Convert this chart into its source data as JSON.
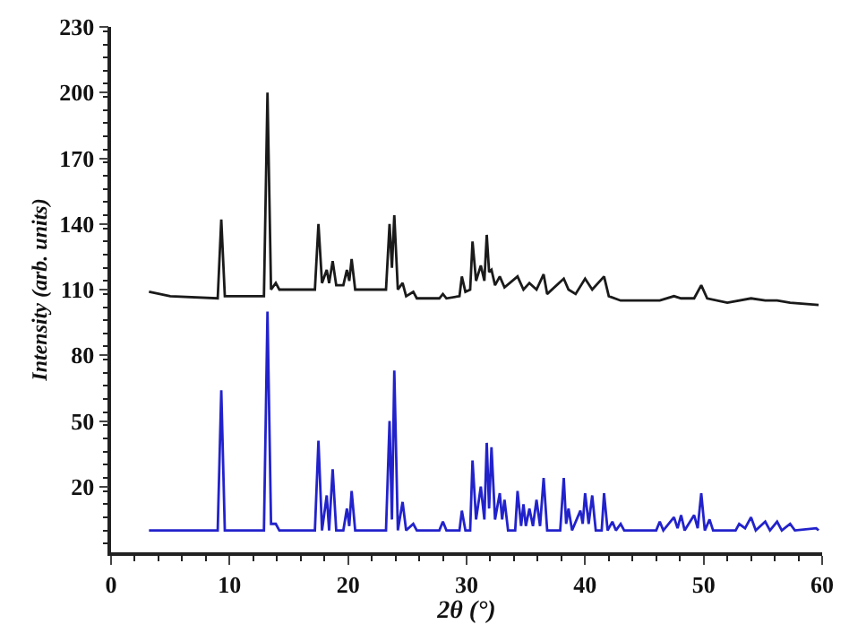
{
  "chart_data": {
    "type": "line",
    "xlabel": "2θ (°)",
    "ylabel": "Intensity (arb. units)",
    "xlim": [
      0,
      60
    ],
    "xticks": [
      0,
      10,
      20,
      30,
      40,
      50,
      60
    ],
    "ylim": [
      -10,
      230
    ],
    "yticks": [
      20,
      50,
      80,
      110,
      140,
      170,
      200,
      230
    ],
    "marker": "none",
    "line_style": "solid",
    "series": [
      {
        "color": "#1a1a1a",
        "x": [
          3.2,
          5,
          9.0,
          9.3,
          9.6,
          12.9,
          13.2,
          13.5,
          13.9,
          14.2,
          17.2,
          17.5,
          17.8,
          18.2,
          18.4,
          18.7,
          19.0,
          19.6,
          19.9,
          20.1,
          20.3,
          20.6,
          23.2,
          23.5,
          23.7,
          23.9,
          24.2,
          24.6,
          24.9,
          25.5,
          25.8,
          27.7,
          28.0,
          28.3,
          29.4,
          29.6,
          29.9,
          30.3,
          30.5,
          30.8,
          31.2,
          31.5,
          31.7,
          31.9,
          32.1,
          32.4,
          32.8,
          33.2,
          34.3,
          34.8,
          35.3,
          35.9,
          36.5,
          36.8,
          38.2,
          38.6,
          39.2,
          40.0,
          40.6,
          41.6,
          42.0,
          43.0,
          46.3,
          47.5,
          48.1,
          49.2,
          49.8,
          50.3,
          52.0,
          54.0,
          55.2,
          56.2,
          57.3,
          59.7
        ],
        "values": [
          109,
          107,
          106,
          142,
          107,
          107,
          200,
          110,
          113,
          110,
          110,
          140,
          113,
          119,
          113,
          123,
          112,
          112,
          119,
          114,
          124,
          110,
          110,
          140,
          120,
          144,
          110,
          113,
          107,
          109,
          106,
          106,
          108,
          106,
          107,
          116,
          109,
          110,
          132,
          114,
          121,
          114,
          135,
          118,
          119,
          112,
          116,
          111,
          116,
          110,
          113,
          110,
          117,
          108,
          115,
          110,
          108,
          115,
          110,
          116,
          107,
          105,
          105,
          107,
          106,
          106,
          112,
          106,
          104,
          106,
          105,
          105,
          104,
          103
        ]
      },
      {
        "color": "#2222cc",
        "x": [
          3.2,
          9.0,
          9.3,
          9.6,
          12.9,
          13.2,
          13.5,
          13.9,
          14.2,
          17.2,
          17.5,
          17.8,
          18.2,
          18.4,
          18.7,
          19.0,
          19.6,
          19.9,
          20.1,
          20.3,
          20.6,
          23.2,
          23.5,
          23.7,
          23.9,
          24.2,
          24.6,
          24.9,
          25.5,
          25.8,
          27.7,
          28.0,
          28.3,
          29.4,
          29.6,
          29.9,
          30.3,
          30.5,
          30.8,
          31.2,
          31.5,
          31.7,
          31.9,
          32.1,
          32.4,
          32.8,
          33.0,
          33.2,
          33.5,
          34.1,
          34.3,
          34.6,
          34.8,
          35.0,
          35.3,
          35.6,
          35.9,
          36.2,
          36.5,
          36.8,
          37.9,
          38.2,
          38.4,
          38.6,
          38.9,
          39.6,
          39.8,
          40.0,
          40.3,
          40.6,
          40.9,
          41.4,
          41.6,
          41.9,
          42.3,
          42.6,
          43.0,
          43.3,
          46.0,
          46.3,
          46.6,
          47.5,
          47.8,
          48.1,
          48.4,
          49.2,
          49.5,
          49.8,
          50.1,
          50.5,
          50.8,
          52.7,
          53.0,
          53.5,
          54.0,
          54.4,
          55.2,
          55.6,
          56.2,
          56.6,
          57.3,
          57.7,
          59.5,
          59.7
        ],
        "values": [
          0,
          0,
          64,
          0,
          0,
          100,
          3,
          3,
          0,
          0,
          41,
          0,
          16,
          0,
          28,
          0,
          0,
          10,
          2,
          18,
          0,
          0,
          50,
          5,
          73,
          0,
          13,
          0,
          3,
          0,
          0,
          4,
          0,
          0,
          9,
          0,
          0,
          32,
          5,
          20,
          5,
          40,
          10,
          38,
          5,
          17,
          5,
          14,
          0,
          0,
          18,
          2,
          12,
          2,
          10,
          2,
          14,
          2,
          24,
          0,
          0,
          24,
          3,
          10,
          0,
          9,
          3,
          17,
          3,
          16,
          0,
          0,
          17,
          0,
          4,
          0,
          3,
          0,
          0,
          4,
          0,
          6,
          1,
          7,
          0,
          7,
          1,
          17,
          0,
          5,
          0,
          0,
          3,
          1,
          6,
          0,
          4,
          0,
          4,
          0,
          3,
          0,
          1,
          0
        ]
      }
    ]
  }
}
